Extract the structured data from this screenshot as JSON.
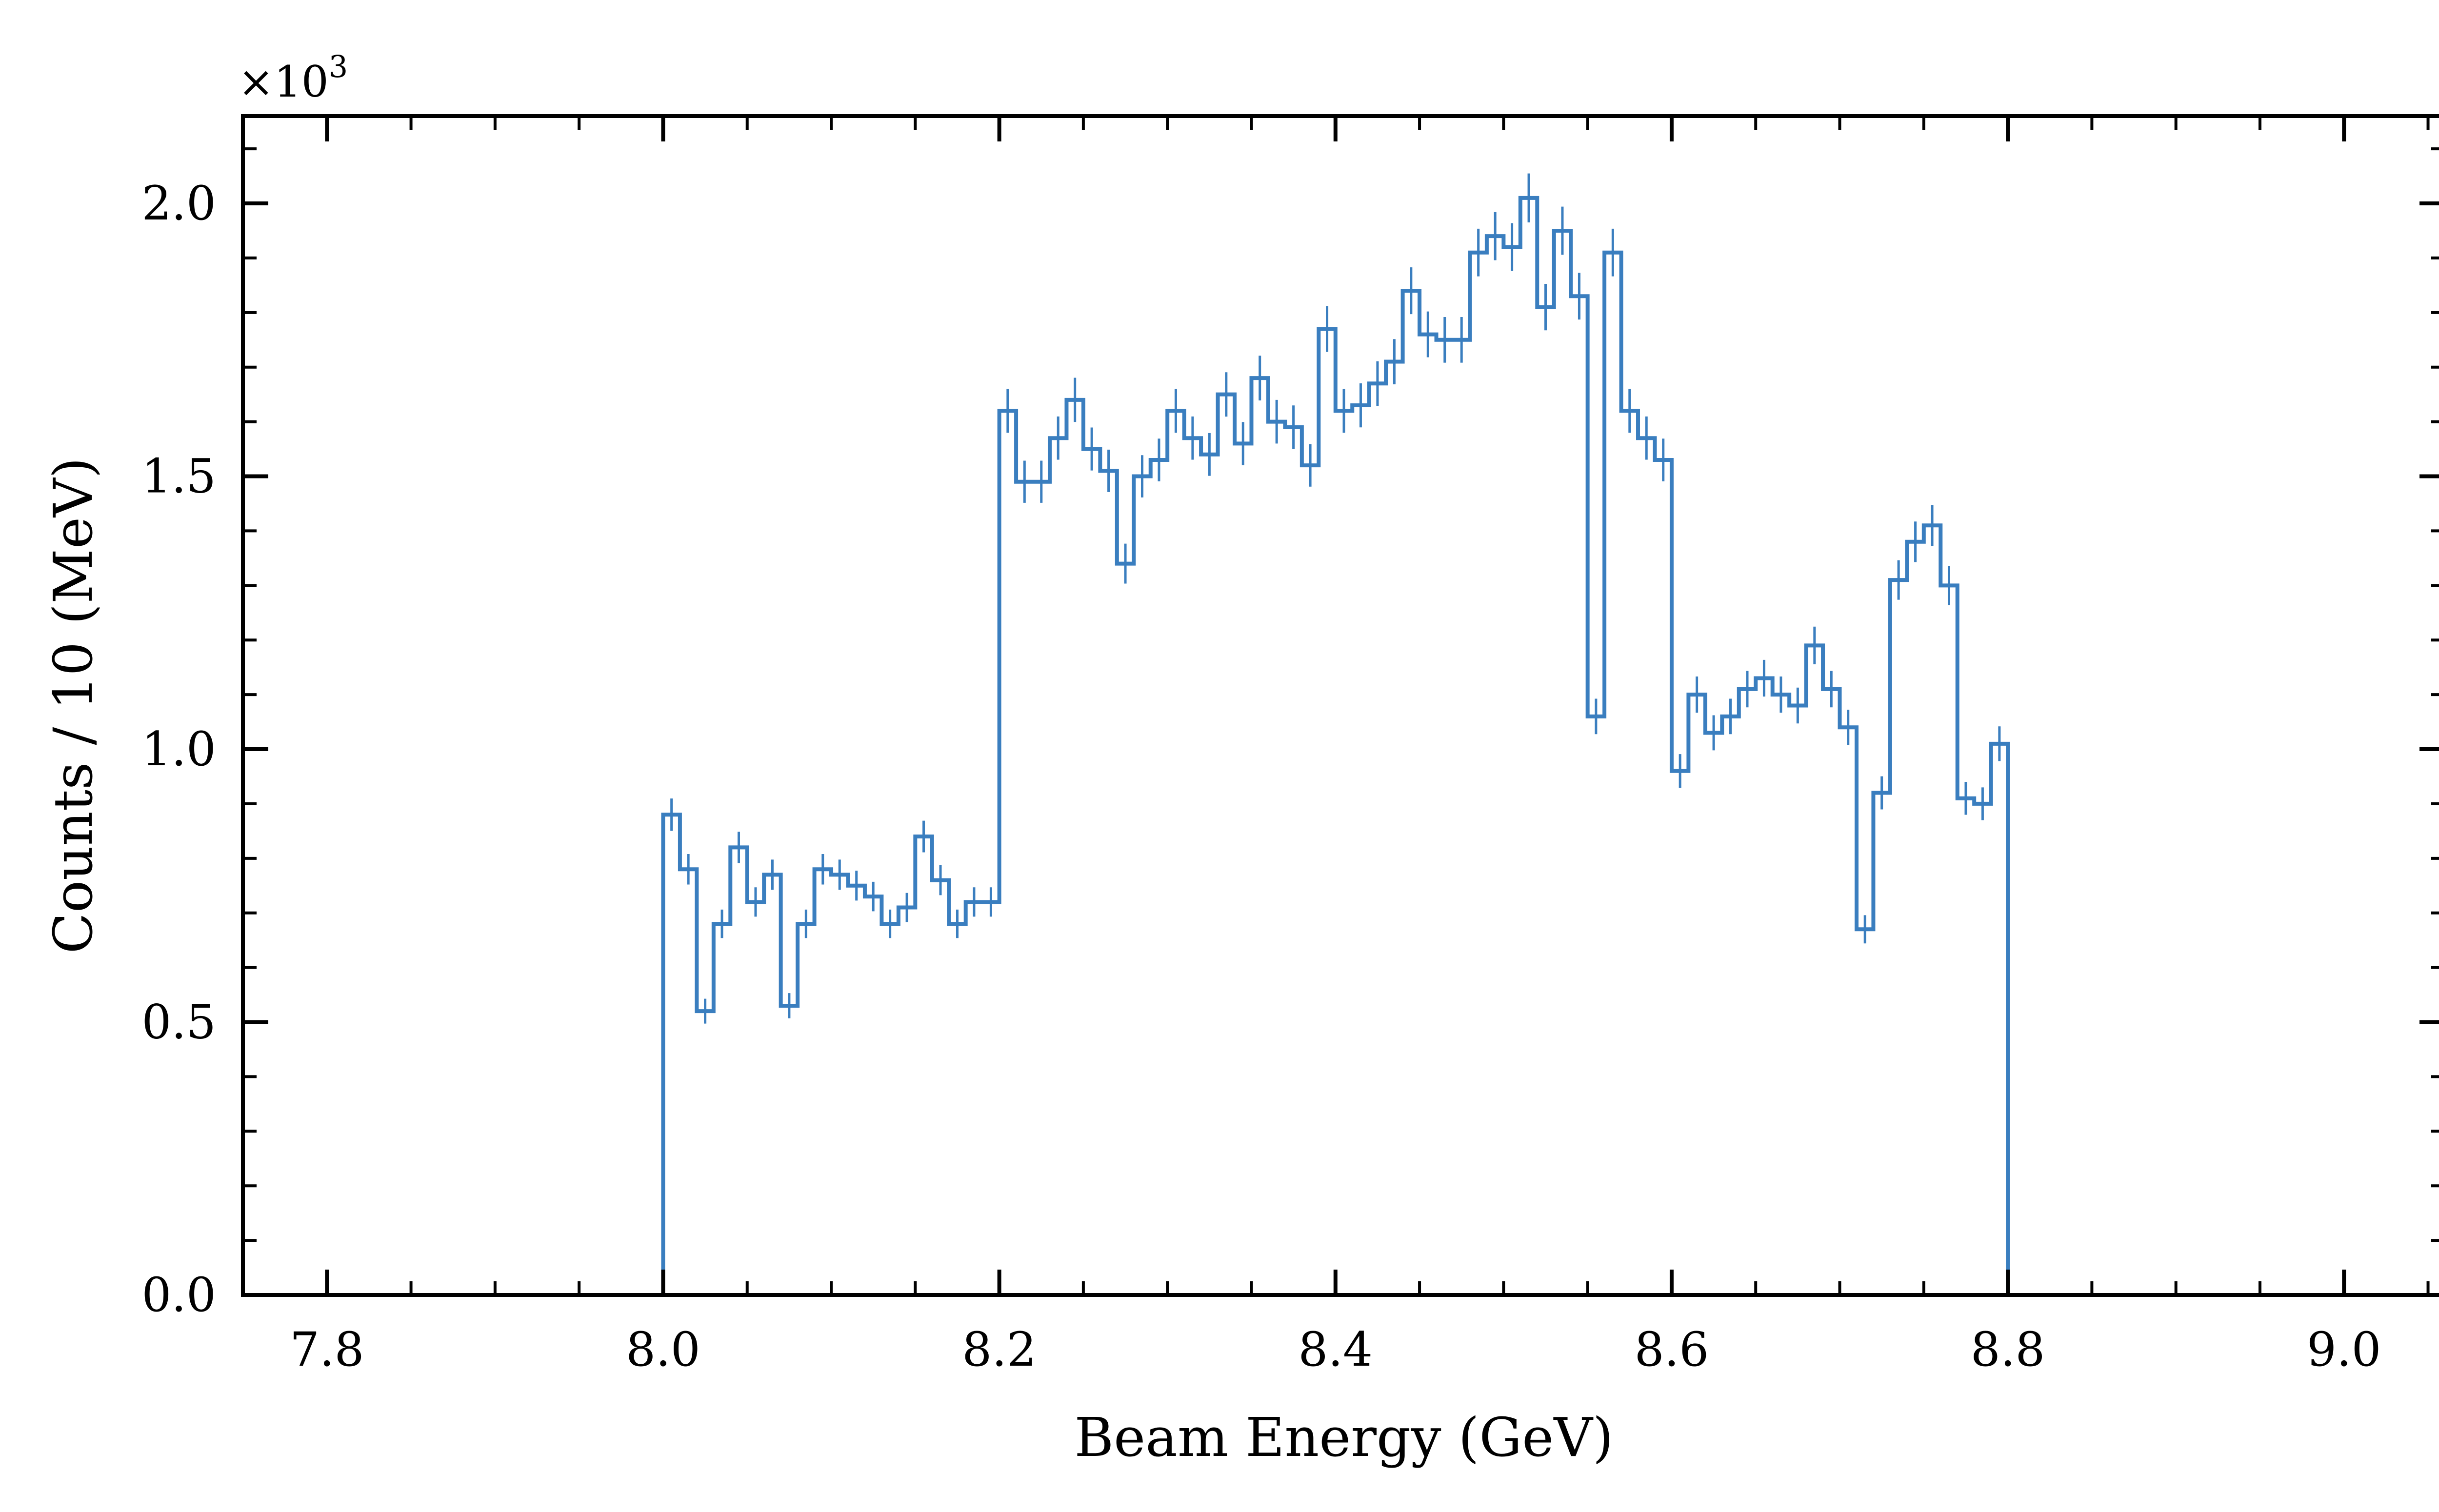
{
  "chart_data": {
    "type": "histogram",
    "title": "",
    "xlabel": "Beam Energy (GeV)",
    "ylabel": "Counts / 10 (MeV)",
    "y_multiplier_label": "×10",
    "y_multiplier_exponent": "3",
    "xlim": [
      7.75,
      9.06
    ],
    "ylim": [
      0.0,
      2.16
    ],
    "y_unit_scale": 1000,
    "xticks": [
      "7.8",
      "8.0",
      "8.2",
      "8.4",
      "8.6",
      "8.8",
      "9.0"
    ],
    "yticks": [
      "0.0",
      "0.5",
      "1.0",
      "1.5",
      "2.0"
    ],
    "grid": false,
    "color": "#3a7ebf",
    "bin_width": 0.01,
    "bin_start": 8.0,
    "series": [
      {
        "values": [
          0.88,
          0.78,
          0.52,
          0.68,
          0.82,
          0.72,
          0.77,
          0.53,
          0.68,
          0.78,
          0.77,
          0.75,
          0.73,
          0.68,
          0.71,
          0.84,
          0.76,
          0.68,
          0.72,
          0.72,
          1.62,
          1.49,
          1.49,
          1.57,
          1.64,
          1.55,
          1.51,
          1.34,
          1.5,
          1.53,
          1.62,
          1.57,
          1.54,
          1.65,
          1.56,
          1.68,
          1.6,
          1.59,
          1.52,
          1.77,
          1.62,
          1.63,
          1.67,
          1.71,
          1.84,
          1.76,
          1.75,
          1.75,
          1.91,
          1.94,
          1.92,
          2.01,
          1.81,
          1.95,
          1.83,
          1.06,
          1.91,
          1.62,
          1.57,
          1.53,
          0.96,
          1.1,
          1.03,
          1.06,
          1.11,
          1.13,
          1.1,
          1.08,
          1.19,
          1.11,
          1.04,
          0.67,
          0.92,
          1.31,
          1.38,
          1.41,
          1.3,
          0.91,
          0.9,
          1.01
        ]
      }
    ]
  }
}
